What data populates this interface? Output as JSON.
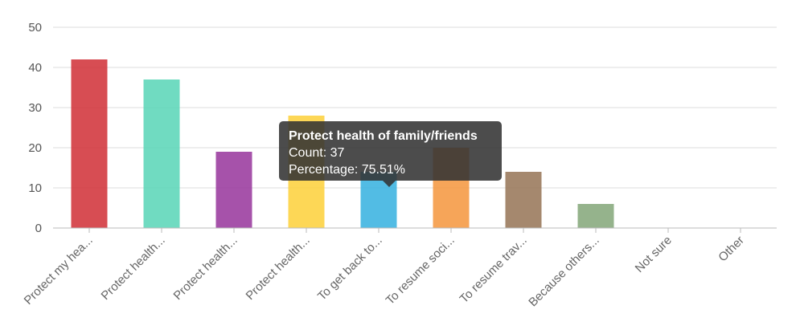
{
  "chart_data": {
    "type": "bar",
    "categories": [
      "Protect my hea...",
      "Protect health...",
      "Protect health...",
      "Protect health...",
      "To get back to...",
      "To resume soci...",
      "To resume trav...",
      "Because others...",
      "Not sure",
      "Other"
    ],
    "values": [
      42,
      37,
      19,
      28,
      14,
      20,
      14,
      6,
      0,
      0
    ],
    "colors": [
      "#d1343b",
      "#5cd6b8",
      "#9a3a9e",
      "#fdd23f",
      "#3ab3e0",
      "#f59842",
      "#98775a",
      "#86a87c",
      "#999999",
      "#999999"
    ],
    "ylim": [
      0,
      50
    ],
    "yticks": [
      0,
      10,
      20,
      30,
      40,
      50
    ],
    "grid": true,
    "legend": "none"
  },
  "tooltip": {
    "title": "Protect health of family/friends",
    "count_line": "Count: 37",
    "percentage_line": "Percentage: 75.51%"
  }
}
